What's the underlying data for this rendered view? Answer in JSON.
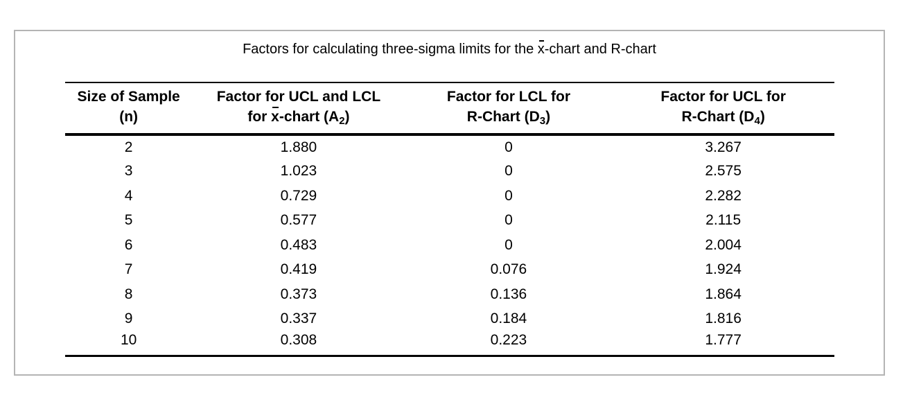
{
  "title": {
    "pre": "Factors for calculating three-sigma limits for the ",
    "xbar": "x",
    "post": "-chart and R-chart"
  },
  "table": {
    "columns": [
      {
        "id": "n",
        "line1": "Size of Sample",
        "line2": {
          "pre": "(n)"
        }
      },
      {
        "id": "a2",
        "line1": "Factor for UCL and LCL",
        "line2": {
          "pre": "for ",
          "xbar": "x",
          "mid": "-chart (A",
          "sub": "2",
          "post": ")"
        }
      },
      {
        "id": "d3",
        "line1": "Factor for LCL for",
        "line2": {
          "pre": "R-Chart (D",
          "sub": "3",
          "post": ")"
        }
      },
      {
        "id": "d4",
        "line1": "Factor for UCL for",
        "line2": {
          "pre": "R-Chart (D",
          "sub": "4",
          "post": ")"
        }
      }
    ],
    "rows": [
      {
        "n": "2",
        "a2": "1.880",
        "d3": "0",
        "d4": "3.267"
      },
      {
        "n": "3",
        "a2": "1.023",
        "d3": "0",
        "d4": "2.575"
      },
      {
        "n": "4",
        "a2": "0.729",
        "d3": "0",
        "d4": "2.282"
      },
      {
        "n": "5",
        "a2": "0.577",
        "d3": "0",
        "d4": "2.115"
      },
      {
        "n": "6",
        "a2": "0.483",
        "d3": "0",
        "d4": "2.004"
      },
      {
        "n": "7",
        "a2": "0.419",
        "d3": "0.076",
        "d4": "1.924"
      },
      {
        "n": "8",
        "a2": "0.373",
        "d3": "0.136",
        "d4": "1.864"
      },
      {
        "n": "9",
        "a2": "0.337",
        "d3": "0.184",
        "d4": "1.816"
      },
      {
        "n": "10",
        "a2": "0.308",
        "d3": "0.223",
        "d4": "1.777"
      }
    ]
  },
  "colors": {
    "background": "#ffffff",
    "frame_border": "#b4b4b4",
    "rule": "#000000",
    "text": "#000000"
  }
}
